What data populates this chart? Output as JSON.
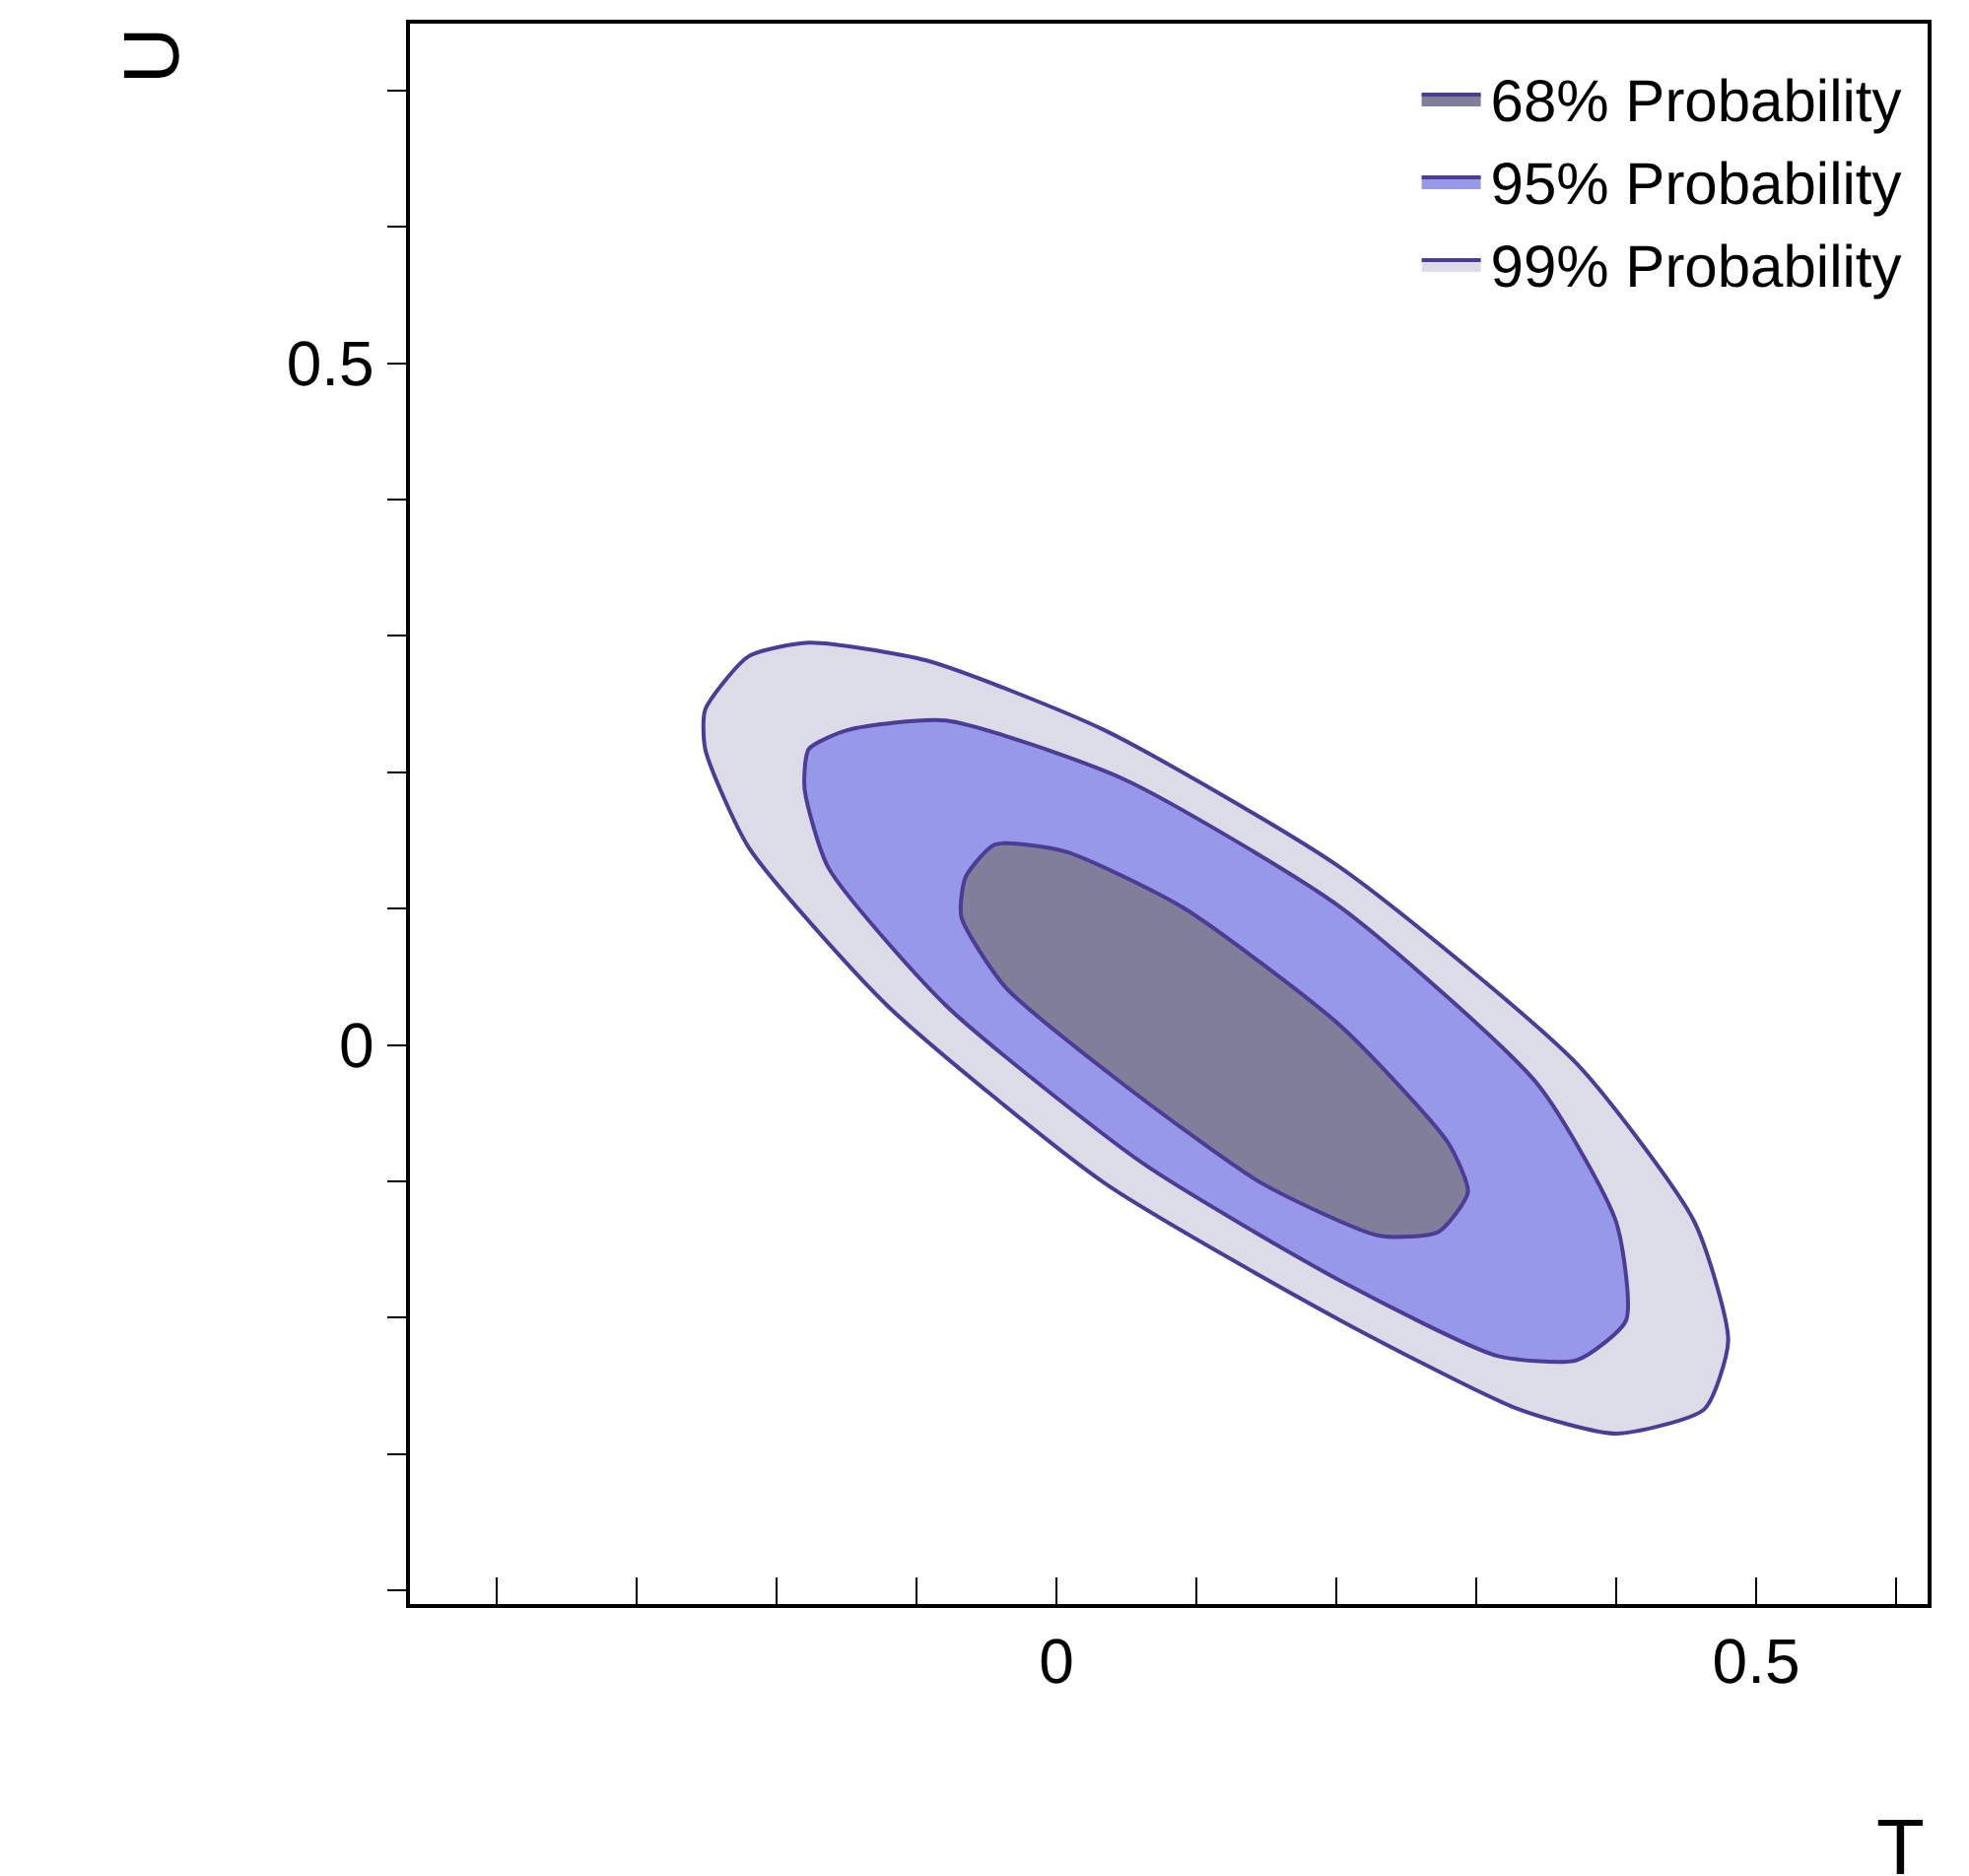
{
  "chart_data": {
    "type": "area",
    "xlabel": "T",
    "ylabel": "U",
    "xlim": [
      -0.462,
      0.6225
    ],
    "ylim": [
      -0.41,
      0.749
    ],
    "xticks": [
      {
        "value": -0.4,
        "label": null
      },
      {
        "value": -0.3,
        "label": null
      },
      {
        "value": -0.2,
        "label": null
      },
      {
        "value": -0.1,
        "label": null
      },
      0,
      {
        "value": 0.1,
        "label": null
      },
      {
        "value": 0.2,
        "label": null
      },
      {
        "value": 0.3,
        "label": null
      },
      {
        "value": 0.4,
        "label": null
      },
      0.5,
      {
        "value": 0.6,
        "label": null
      }
    ],
    "yticks": [
      {
        "value": -0.4,
        "label": null
      },
      {
        "value": -0.3,
        "label": null
      },
      {
        "value": -0.2,
        "label": null
      },
      {
        "value": -0.1,
        "label": null
      },
      0,
      {
        "value": 0.1,
        "label": null
      },
      {
        "value": 0.2,
        "label": null
      },
      {
        "value": 0.3,
        "label": null
      },
      {
        "value": 0.4,
        "label": null
      },
      0.5,
      {
        "value": 0.6,
        "label": null
      },
      {
        "value": 0.7,
        "label": null
      }
    ],
    "legend": "top right",
    "grid": false,
    "series": [
      {
        "name": "68% Probability",
        "color": "#7f7f9a",
        "x": [
          -0.065,
          -0.044,
          0.006,
          0.09,
          0.203,
          0.28,
          0.294,
          0.273,
          0.231,
          0.146,
          0.048,
          -0.037,
          -0.068,
          -0.065
        ],
        "values": [
          0.123,
          0.147,
          0.142,
          0.101,
          0.014,
          -0.072,
          -0.108,
          -0.137,
          -0.14,
          -0.101,
          -0.029,
          0.043,
          0.094,
          0.123
        ]
      },
      {
        "name": "95% Probability",
        "color": "#9898e8",
        "x": [
          -0.177,
          -0.149,
          -0.079,
          0.048,
          0.203,
          0.344,
          0.4,
          0.407,
          0.372,
          0.315,
          0.203,
          0.062,
          -0.079,
          -0.163,
          -0.18,
          -0.177
        ],
        "values": [
          0.217,
          0.231,
          0.238,
          0.195,
          0.101,
          -0.029,
          -0.13,
          -0.202,
          -0.231,
          -0.228,
          -0.173,
          -0.087,
          0.029,
          0.13,
          0.188,
          0.217
        ]
      },
      {
        "name": "99% Probability",
        "color": "#dcdce8",
        "x": [
          -0.251,
          -0.22,
          -0.177,
          -0.093,
          0.034,
          0.203,
          0.372,
          0.456,
          0.48,
          0.463,
          0.4,
          0.33,
          0.203,
          0.034,
          -0.121,
          -0.22,
          -0.251,
          -0.251
        ],
        "values": [
          0.246,
          0.285,
          0.295,
          0.282,
          0.231,
          0.13,
          -0.014,
          -0.13,
          -0.217,
          -0.267,
          -0.285,
          -0.267,
          -0.202,
          -0.101,
          0.029,
          0.145,
          0.217,
          0.246
        ]
      }
    ]
  }
}
